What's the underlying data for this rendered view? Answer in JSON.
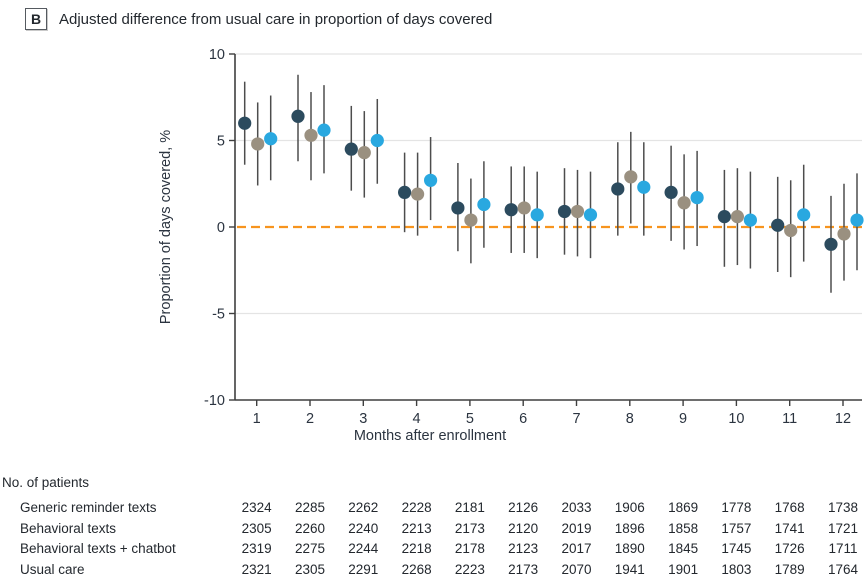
{
  "panel": {
    "label": "B",
    "title": "Adjusted difference from usual care in proportion of days covered"
  },
  "chart_data": {
    "type": "scatter",
    "x": [
      1,
      2,
      3,
      4,
      5,
      6,
      7,
      8,
      9,
      10,
      11,
      12
    ],
    "xlabel": "Months after enrollment",
    "ylabel": "Proportion of days covered, %",
    "ylim": [
      -10,
      10
    ],
    "yticks": [
      10,
      5,
      0,
      -5,
      -10
    ],
    "gridline_values": [
      10,
      5,
      -5
    ],
    "zero_line": {
      "value": 0,
      "color": "#f7941e",
      "style": "dashed"
    },
    "legend": "none (series distinguished by color only)",
    "colors": {
      "error_bar": "#4d4d4d",
      "gridline": "#e4e4e4",
      "axis": "#3f3f3f",
      "tick_text": "#2b3440"
    },
    "series": [
      {
        "name": "navy",
        "color": "#2c4b5e",
        "values": [
          6.0,
          6.4,
          4.5,
          2.0,
          1.1,
          1.0,
          0.9,
          2.2,
          2.0,
          0.6,
          0.1,
          -1.0
        ],
        "ci_low": [
          3.6,
          3.8,
          2.1,
          -0.3,
          -1.4,
          -1.5,
          -1.6,
          -0.5,
          -0.8,
          -2.3,
          -2.6,
          -3.8
        ],
        "ci_high": [
          8.4,
          8.8,
          7.0,
          4.3,
          3.7,
          3.5,
          3.4,
          4.9,
          4.7,
          3.3,
          2.9,
          1.8
        ]
      },
      {
        "name": "tan",
        "color": "#9a9080",
        "values": [
          4.8,
          5.3,
          4.3,
          1.9,
          0.4,
          1.1,
          0.9,
          2.9,
          1.4,
          0.6,
          -0.2,
          -0.4
        ],
        "ci_low": [
          2.4,
          2.7,
          1.7,
          -0.5,
          -2.1,
          -1.5,
          -1.7,
          0.2,
          -1.3,
          -2.2,
          -2.9,
          -3.1
        ],
        "ci_high": [
          7.2,
          7.8,
          6.7,
          4.3,
          2.8,
          3.5,
          3.3,
          5.5,
          4.2,
          3.4,
          2.7,
          2.5
        ]
      },
      {
        "name": "light-blue",
        "color": "#29a8e0",
        "values": [
          5.1,
          5.6,
          5.0,
          2.7,
          1.3,
          0.7,
          0.7,
          2.3,
          1.7,
          0.4,
          0.7,
          0.4
        ],
        "ci_low": [
          2.7,
          3.1,
          2.5,
          0.4,
          -1.2,
          -1.8,
          -1.8,
          -0.5,
          -1.1,
          -2.4,
          -2.0,
          -2.5
        ],
        "ci_high": [
          7.6,
          8.2,
          7.4,
          5.2,
          3.8,
          3.2,
          3.2,
          4.9,
          4.4,
          3.2,
          3.6,
          3.1
        ]
      }
    ]
  },
  "patients_table": {
    "header": "No. of patients",
    "rows": [
      {
        "label": "Generic reminder texts",
        "values": [
          2324,
          2285,
          2262,
          2228,
          2181,
          2126,
          2033,
          1906,
          1869,
          1778,
          1768,
          1738
        ]
      },
      {
        "label": "Behavioral texts",
        "values": [
          2305,
          2260,
          2240,
          2213,
          2173,
          2120,
          2019,
          1896,
          1858,
          1757,
          1741,
          1721
        ]
      },
      {
        "label": "Behavioral texts + chatbot",
        "values": [
          2319,
          2275,
          2244,
          2218,
          2178,
          2123,
          2017,
          1890,
          1845,
          1745,
          1726,
          1711
        ]
      },
      {
        "label": "Usual care",
        "values": [
          2321,
          2305,
          2291,
          2268,
          2223,
          2173,
          2070,
          1941,
          1901,
          1803,
          1789,
          1764
        ]
      }
    ]
  }
}
